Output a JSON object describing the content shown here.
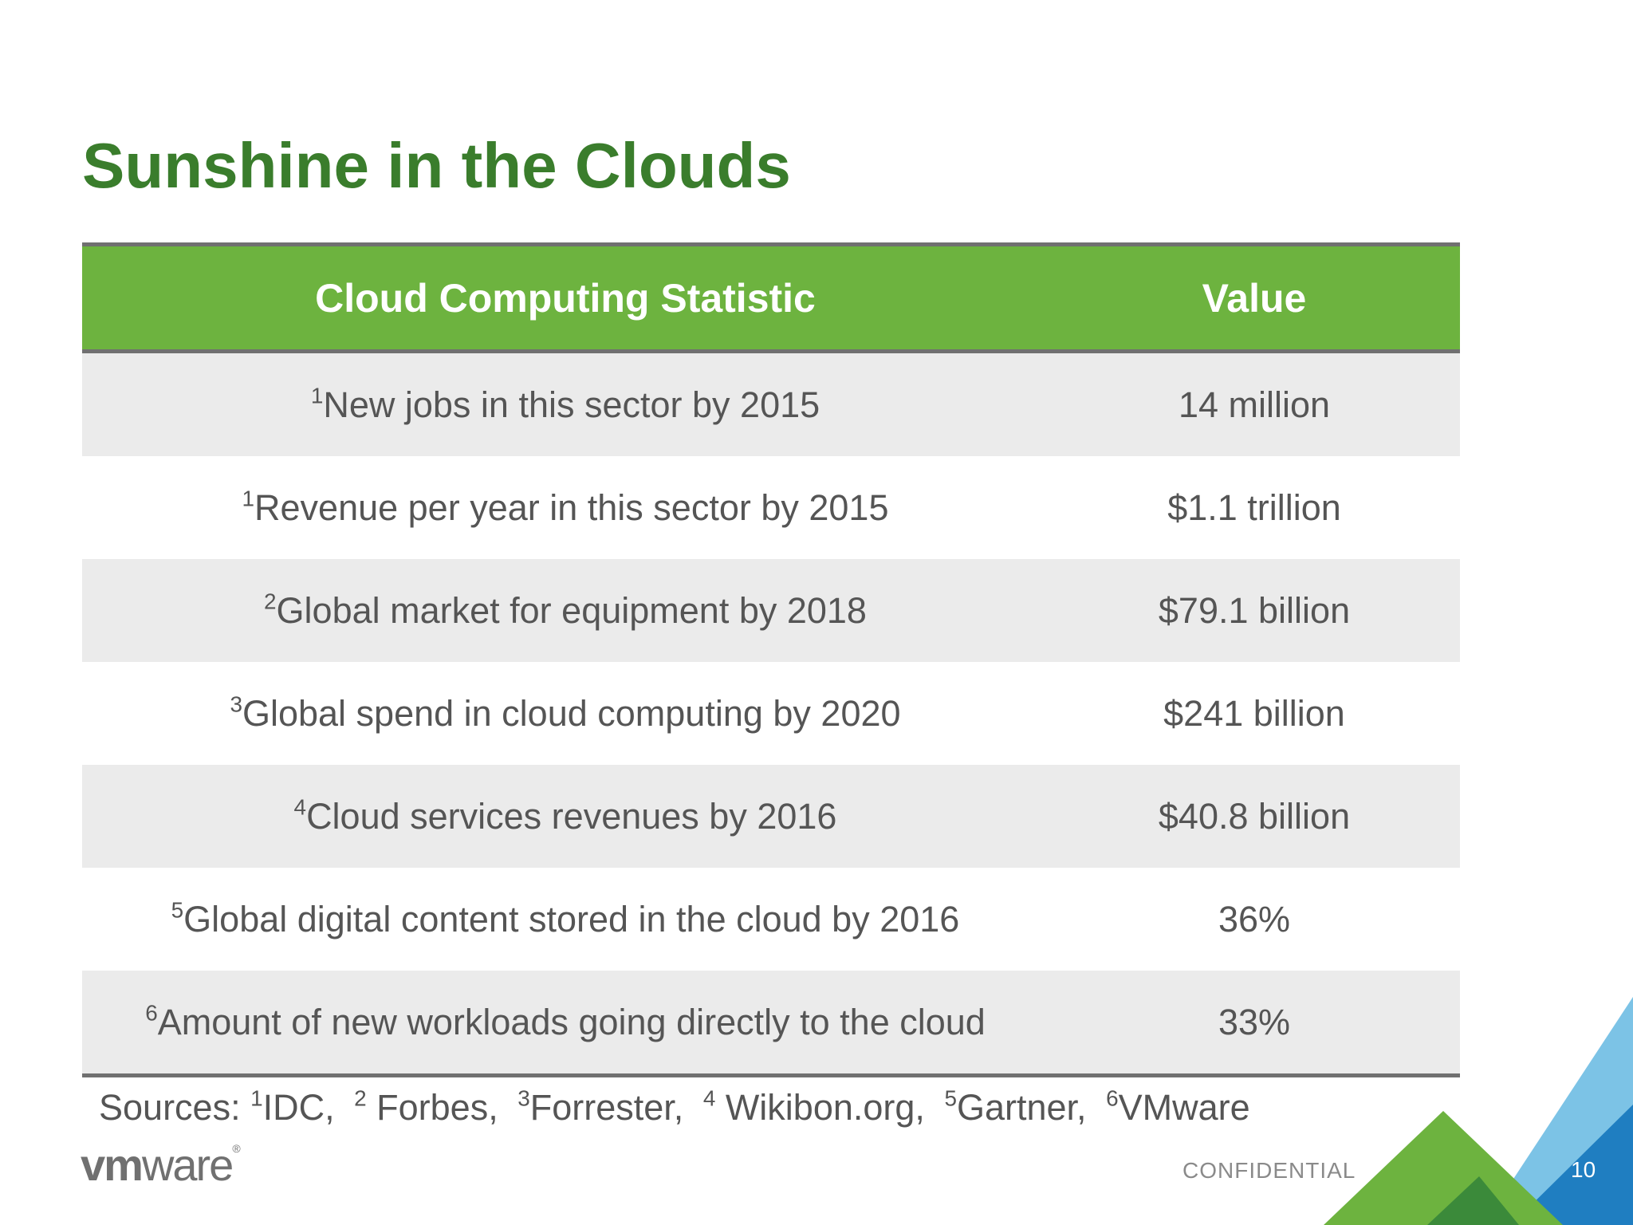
{
  "slide": {
    "title": "Sunshine in the Clouds",
    "confidential_label": "CONFIDENTIAL",
    "page_number": "10",
    "logo_text": {
      "vm": "vm",
      "ware": "ware",
      "reg": "®"
    }
  },
  "table": {
    "headers": [
      "Cloud Computing Statistic",
      "Value"
    ],
    "rows": [
      {
        "ref": "1",
        "statistic": "New jobs in this sector by 2015",
        "value": "14 million"
      },
      {
        "ref": "1",
        "statistic": "Revenue per year in this sector by 2015",
        "value": "$1.1 trillion"
      },
      {
        "ref": "2",
        "statistic": "Global market for equipment by 2018",
        "value": "$79.1 billion"
      },
      {
        "ref": "3",
        "statistic": "Global spend in cloud computing by 2020",
        "value": "$241 billion"
      },
      {
        "ref": "4",
        "statistic": "Cloud services revenues by 2016",
        "value": "$40.8 billion"
      },
      {
        "ref": "5",
        "statistic": "Global digital content stored in the cloud by 2016",
        "value": "36%"
      },
      {
        "ref": "6",
        "statistic": "Amount of new workloads going directly to the cloud",
        "value": "33%"
      }
    ]
  },
  "sources": {
    "label": "Sources:",
    "items": [
      {
        "ref": "1",
        "name": "IDC,"
      },
      {
        "ref": "2",
        "name": " Forbes,"
      },
      {
        "ref": "3",
        "name": "Forrester,"
      },
      {
        "ref": "4",
        "name": " Wikibon.org,"
      },
      {
        "ref": "5",
        "name": "Gartner,"
      },
      {
        "ref": "6",
        "name": "VMware"
      }
    ]
  },
  "colors": {
    "title_green": "#3a7d2c",
    "header_green": "#6db33f",
    "row_shade": "#ebebeb",
    "rule_gray": "#707070",
    "corner_blue": "#1f7ec1",
    "corner_light_blue": "#7cc3e6",
    "corner_dark_green": "#3b8a3a"
  }
}
